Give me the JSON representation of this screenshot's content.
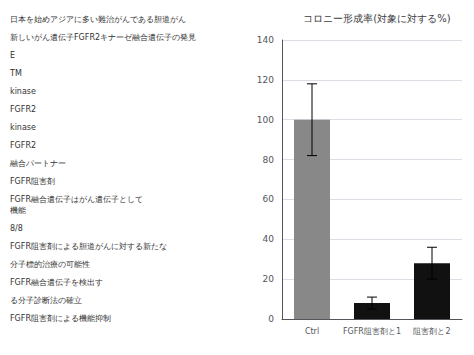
{
  "chart_data": {
    "type": "bar",
    "title": "コロニー形成率(対象に対する%)",
    "categories": [
      "Ctrl",
      "FGFR阻害剤と1",
      "阻害剤と2"
    ],
    "values": [
      100,
      8,
      28
    ],
    "errors": [
      18,
      3,
      8
    ],
    "colors": [
      "#888888",
      "#111111",
      "#111111"
    ],
    "ylim": [
      0,
      140
    ],
    "yticks": [
      0,
      20,
      40,
      60,
      80,
      100,
      120,
      140
    ],
    "grid": true,
    "annotations": [
      "日本を始めアジアに多い難治がんである胆道がん",
      "新しいがん遺伝子FGFR2キナーゼ融合遺伝子の発見",
      "E",
      "TM",
      "kinase",
      "FGFR2",
      "kinase",
      "FGFR2",
      "融合パートナー",
      "FGFR阻害剤",
      "FGFR融合遺伝子はがん遺伝子として\n機能",
      "8/8",
      "FGFR阻害剤による胆道がんに対する新たな",
      "分子標的治療の可能性",
      "FGFR融合遺伝子を検出す",
      "る分子診断法の確立",
      "FGFR阻害剤による機能抑制"
    ]
  }
}
